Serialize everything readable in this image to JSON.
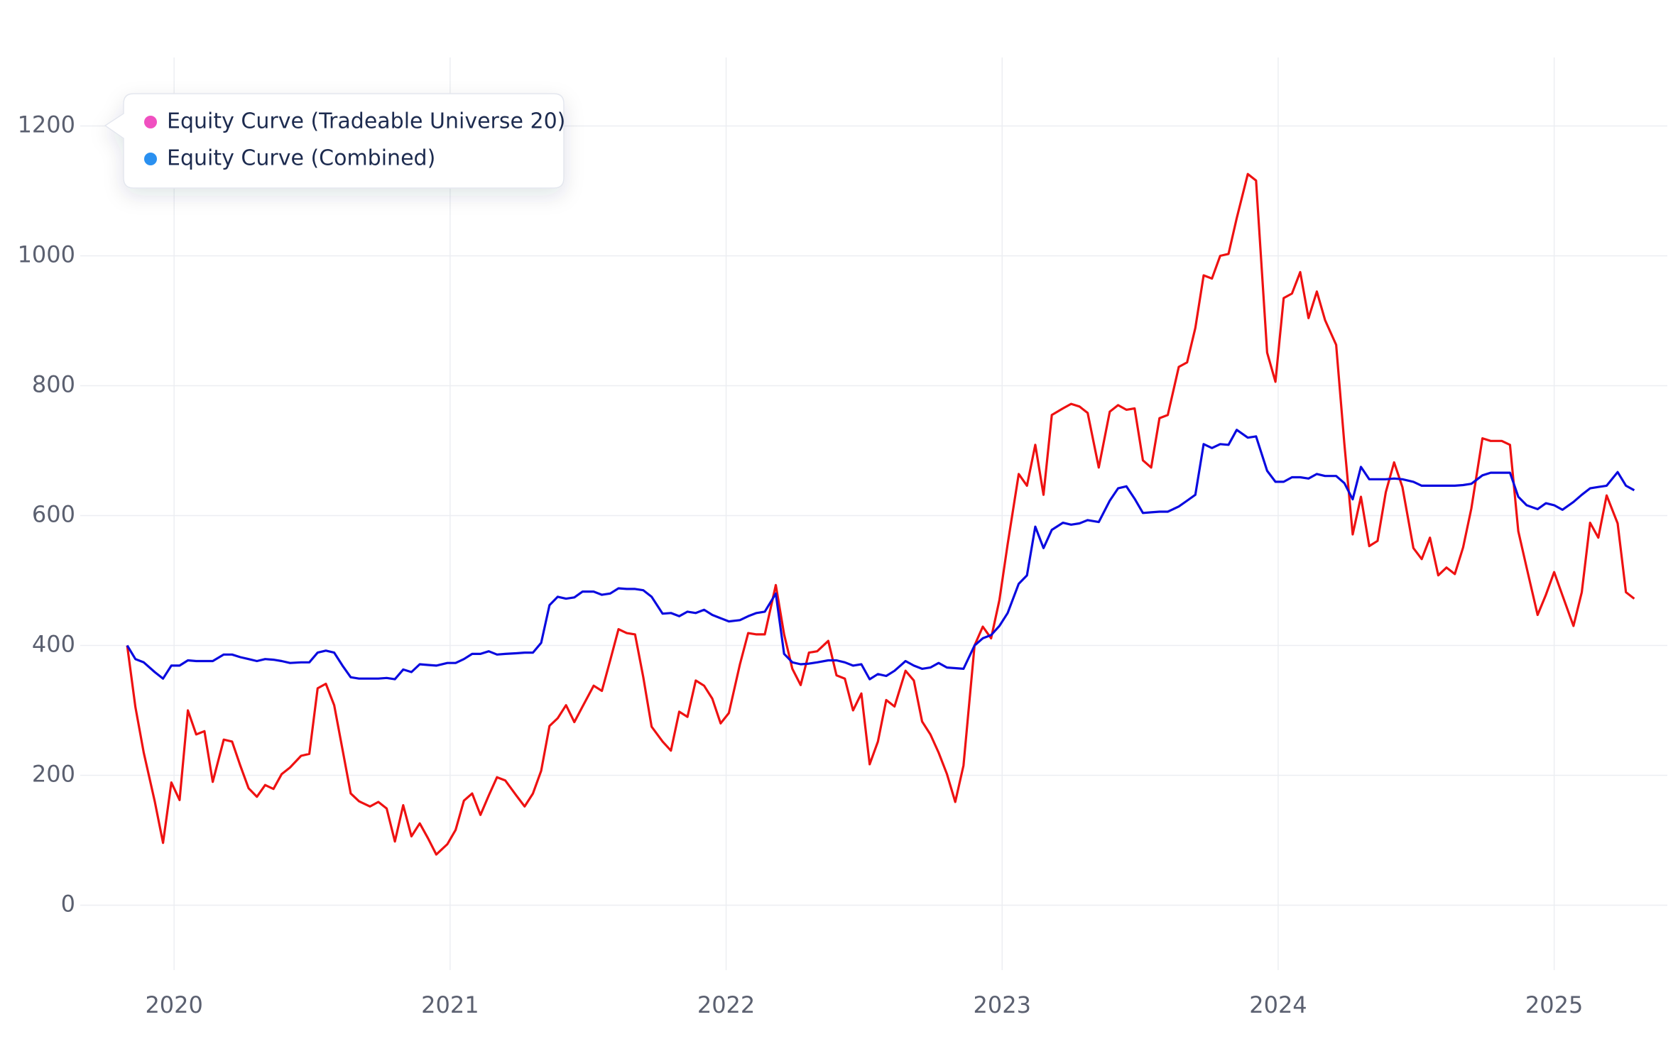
{
  "chart_data": {
    "type": "line",
    "x": [
      2019.83,
      2019.86,
      2019.89,
      2019.93,
      2019.96,
      2019.99,
      2020.02,
      2020.05,
      2020.08,
      2020.11,
      2020.14,
      2020.18,
      2020.21,
      2020.24,
      2020.27,
      2020.3,
      2020.33,
      2020.36,
      2020.39,
      2020.42,
      2020.46,
      2020.49,
      2020.52,
      2020.55,
      2020.58,
      2020.61,
      2020.64,
      2020.67,
      2020.71,
      2020.74,
      2020.77,
      2020.8,
      2020.83,
      2020.86,
      2020.89,
      2020.92,
      2020.95,
      2020.99,
      2021.02,
      2021.05,
      2021.08,
      2021.11,
      2021.14,
      2021.17,
      2021.2,
      2021.24,
      2021.27,
      2021.3,
      2021.33,
      2021.36,
      2021.39,
      2021.42,
      2021.45,
      2021.48,
      2021.52,
      2021.55,
      2021.58,
      2021.61,
      2021.64,
      2021.67,
      2021.7,
      2021.73,
      2021.77,
      2021.8,
      2021.83,
      2021.86,
      2021.89,
      2021.92,
      2021.95,
      2021.98,
      2022.01,
      2022.05,
      2022.08,
      2022.11,
      2022.14,
      2022.18,
      2022.21,
      2022.24,
      2022.27,
      2022.3,
      2022.33,
      2022.37,
      2022.4,
      2022.43,
      2022.46,
      2022.49,
      2022.52,
      2022.55,
      2022.58,
      2022.61,
      2022.65,
      2022.68,
      2022.71,
      2022.74,
      2022.77,
      2022.8,
      2022.83,
      2022.86,
      2022.9,
      2022.93,
      2022.96,
      2022.99,
      2023.02,
      2023.06,
      2023.09,
      2023.12,
      2023.15,
      2023.18,
      2023.22,
      2023.25,
      2023.28,
      2023.31,
      2023.35,
      2023.39,
      2023.42,
      2023.45,
      2023.48,
      2023.51,
      2023.54,
      2023.57,
      2023.6,
      2023.64,
      2023.67,
      2023.7,
      2023.73,
      2023.76,
      2023.79,
      2023.82,
      2023.85,
      2023.89,
      2023.92,
      2023.96,
      2023.99,
      2024.02,
      2024.05,
      2024.08,
      2024.11,
      2024.14,
      2024.17,
      2024.21,
      2024.24,
      2024.27,
      2024.3,
      2024.33,
      2024.36,
      2024.39,
      2024.42,
      2024.45,
      2024.49,
      2024.52,
      2024.55,
      2024.58,
      2024.61,
      2024.64,
      2024.67,
      2024.7,
      2024.74,
      2024.77,
      2024.81,
      2024.84,
      2024.87,
      2024.9,
      2024.94,
      2024.97,
      2025.0,
      2025.03,
      2025.07,
      2025.1,
      2025.13,
      2025.16,
      2025.19,
      2025.23,
      2025.26,
      2025.29
    ],
    "series": [
      {
        "name": "Equity Curve (Tradeable Universe 20)",
        "color": "#ee1111",
        "legend_color": "#f050c0",
        "values": [
          400,
          305,
          235,
          160,
          96,
          189,
          162,
          300,
          263,
          268,
          190,
          255,
          252,
          215,
          180,
          167,
          185,
          179,
          202,
          212,
          230,
          233,
          334,
          341,
          308,
          240,
          172,
          160,
          152,
          159,
          149,
          98,
          154,
          106,
          126,
          103,
          78,
          94,
          116,
          161,
          172,
          139,
          169,
          197,
          192,
          169,
          152,
          172,
          207,
          276,
          288,
          308,
          282,
          306,
          338,
          330,
          377,
          425,
          419,
          417,
          351,
          275,
          252,
          238,
          298,
          290,
          346,
          338,
          318,
          280,
          296,
          371,
          419,
          417,
          417,
          493,
          417,
          364,
          339,
          389,
          391,
          407,
          354,
          349,
          300,
          326,
          217,
          252,
          316,
          306,
          361,
          346,
          283,
          263,
          235,
          202,
          159,
          215,
          400,
          429,
          411,
          470,
          556,
          664,
          646,
          709,
          632,
          755,
          765,
          772,
          768,
          758,
          674,
          760,
          770,
          763,
          765,
          685,
          674,
          750,
          755,
          829,
          836,
          889,
          970,
          965,
          1000,
          1003,
          1058,
          1126,
          1116,
          851,
          806,
          935,
          942,
          975,
          904,
          945,
          901,
          863,
          710,
          571,
          629,
          553,
          561,
          636,
          682,
          644,
          550,
          533,
          566,
          508,
          520,
          510,
          551,
          611,
          719,
          715,
          715,
          709,
          576,
          520,
          447,
          478,
          513,
          477,
          430,
          482,
          589,
          566,
          631,
          588,
          482,
          472
        ]
      },
      {
        "name": "Equity Curve (Combined)",
        "color": "#0a0adf",
        "legend_color": "#2a90f0",
        "values": [
          400,
          379,
          374,
          359,
          349,
          369,
          369,
          377,
          376,
          376,
          376,
          386,
          386,
          382,
          379,
          376,
          379,
          378,
          376,
          373,
          374,
          374,
          389,
          392,
          389,
          369,
          351,
          349,
          349,
          349,
          350,
          348,
          363,
          359,
          371,
          370,
          369,
          373,
          373,
          379,
          387,
          387,
          391,
          386,
          387,
          388,
          389,
          389,
          404,
          462,
          475,
          472,
          474,
          483,
          483,
          478,
          480,
          488,
          487,
          487,
          485,
          475,
          449,
          450,
          445,
          452,
          450,
          455,
          447,
          442,
          437,
          439,
          445,
          450,
          452,
          480,
          387,
          374,
          371,
          372,
          374,
          377,
          377,
          374,
          369,
          371,
          348,
          356,
          353,
          361,
          376,
          369,
          364,
          366,
          373,
          366,
          365,
          364,
          400,
          411,
          416,
          430,
          450,
          495,
          508,
          583,
          550,
          578,
          589,
          586,
          588,
          593,
          590,
          623,
          642,
          645,
          626,
          604,
          605,
          606,
          606,
          614,
          623,
          632,
          710,
          704,
          710,
          709,
          732,
          720,
          722,
          669,
          652,
          652,
          659,
          659,
          657,
          664,
          661,
          661,
          650,
          625,
          675,
          656,
          656,
          656,
          657,
          656,
          652,
          646,
          646,
          646,
          646,
          646,
          647,
          649,
          662,
          666,
          666,
          666,
          629,
          616,
          610,
          619,
          616,
          609,
          621,
          632,
          642,
          644,
          646,
          667,
          646,
          639
        ]
      }
    ],
    "xlim": [
      2019.66,
      2025.41
    ],
    "xticks": [
      2020,
      2021,
      2022,
      2023,
      2024,
      2025
    ],
    "ylim": [
      -100,
      1300
    ],
    "yticks": [
      0,
      200,
      400,
      600,
      800,
      1000,
      1200
    ],
    "grid": true,
    "legend": "top-left"
  }
}
